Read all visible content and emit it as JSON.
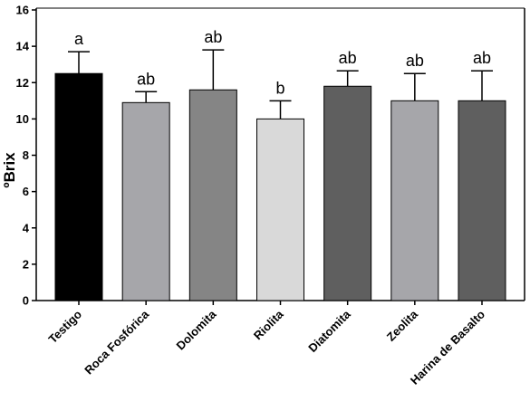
{
  "chart_data": {
    "type": "bar",
    "title": "",
    "xlabel": "",
    "ylabel": "ºBrix",
    "ylim": [
      0,
      16
    ],
    "yticks": [
      0,
      2,
      4,
      6,
      8,
      10,
      12,
      14,
      16
    ],
    "ytick_labels": [
      "0",
      "2",
      "4",
      "6",
      "8",
      "10",
      "12",
      "14",
      "16"
    ],
    "grid": false,
    "legend": "none",
    "categories": [
      "Testigo",
      "Roca Fosfórica",
      "Dolomita",
      "Riolita",
      "Diatomita",
      "Zeolita",
      "Harina de Basalto"
    ],
    "values": [
      12.5,
      10.9,
      11.6,
      10.0,
      11.8,
      11.0,
      11.0
    ],
    "error_upper": [
      1.2,
      0.6,
      2.2,
      1.0,
      0.85,
      1.5,
      1.65
    ],
    "significance": [
      "a",
      "ab",
      "ab",
      "b",
      "ab",
      "ab",
      "ab"
    ],
    "bar_colors": [
      "#000000",
      "#a6a6aa",
      "#858585",
      "#d9d9d9",
      "#5f5f5f",
      "#a6a6aa",
      "#5f5f5f"
    ]
  }
}
